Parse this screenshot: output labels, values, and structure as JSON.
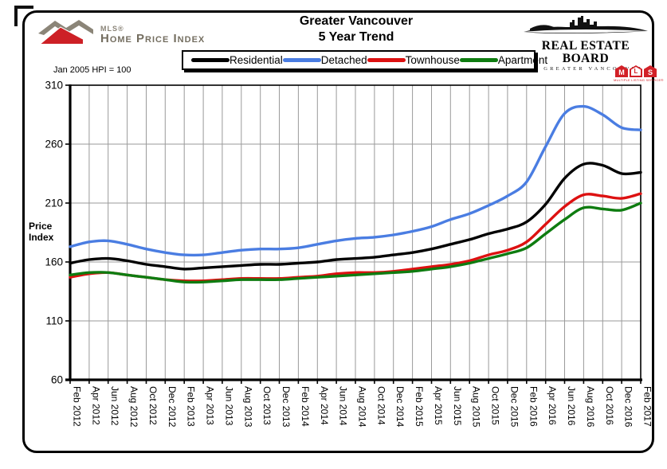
{
  "header": {
    "hpi_logo": {
      "brand_small": "MLS®",
      "brand_main": "Home Price Index"
    },
    "title_line1": "Greater Vancouver",
    "title_line2": "5 Year Trend",
    "board_logo": {
      "line1": "REAL ESTATE BOARD",
      "line2": "OF GREATER VANCOUVER"
    }
  },
  "legend": {
    "items": [
      {
        "label": "Residential",
        "color": "#000000"
      },
      {
        "label": "Detached",
        "color": "#4a7de2"
      },
      {
        "label": "Townhouse",
        "color": "#dd1111"
      },
      {
        "label": "Apartment",
        "color": "#0e7c10"
      }
    ]
  },
  "annotations": {
    "baseline_note": "Jan 2005 HPI = 100",
    "y_axis_label_line1": "Price",
    "y_axis_label_line2": "Index",
    "mls_badge": {
      "letters": [
        "M",
        "L",
        "S"
      ],
      "caption": "MULTIPLE LISTING SERVICE®"
    }
  },
  "chart_data": {
    "type": "line",
    "title": "Greater Vancouver 5 Year Trend",
    "ylabel": "Price Index",
    "ylim": [
      60,
      310
    ],
    "y_ticks": [
      60,
      110,
      160,
      210,
      260,
      310
    ],
    "grid": true,
    "legend_position": "top",
    "baseline": "Jan 2005 HPI = 100",
    "x_tick_labels": [
      "Feb 2012",
      "Apr 2012",
      "Jun 2012",
      "Aug 2012",
      "Oct 2012",
      "Dec 2012",
      "Feb 2013",
      "Apr 2013",
      "Jun 2013",
      "Aug 2013",
      "Oct 2013",
      "Dec 2013",
      "Feb 2014",
      "Apr 2014",
      "Jun 2014",
      "Aug 2014",
      "Oct 2014",
      "Dec 2014",
      "Feb 2015",
      "Apr 2015",
      "Jun 2015",
      "Aug 2015",
      "Oct 2015",
      "Dec 2015",
      "Feb 2016",
      "Apr 2016",
      "Jun 2016",
      "Aug 2016",
      "Oct 2016",
      "Dec 2016",
      "Feb 2017"
    ],
    "series": [
      {
        "name": "Residential",
        "color": "#000000",
        "values": [
          159,
          162,
          163,
          161,
          158,
          156,
          154,
          155,
          156,
          157,
          158,
          158,
          159,
          160,
          162,
          163,
          164,
          166,
          168,
          171,
          175,
          179,
          184,
          188,
          194,
          209,
          231,
          243,
          242,
          235,
          236
        ]
      },
      {
        "name": "Detached",
        "color": "#4a7de2",
        "values": [
          173,
          177,
          178,
          175,
          171,
          168,
          166,
          166,
          168,
          170,
          171,
          171,
          172,
          175,
          178,
          180,
          181,
          183,
          186,
          190,
          196,
          201,
          208,
          216,
          228,
          258,
          286,
          292,
          285,
          274,
          272
        ]
      },
      {
        "name": "Townhouse",
        "color": "#dd1111",
        "values": [
          147,
          150,
          151,
          149,
          147,
          145,
          144,
          144,
          145,
          146,
          146,
          146,
          147,
          148,
          150,
          151,
          151,
          152,
          154,
          156,
          158,
          161,
          166,
          170,
          177,
          192,
          207,
          217,
          216,
          214,
          218
        ]
      },
      {
        "name": "Apartment",
        "color": "#0e7c10",
        "values": [
          149,
          151,
          151,
          149,
          147,
          145,
          143,
          143,
          144,
          145,
          145,
          145,
          146,
          147,
          148,
          149,
          150,
          151,
          152,
          154,
          156,
          159,
          163,
          167,
          172,
          184,
          196,
          206,
          205,
          204,
          210
        ]
      }
    ]
  }
}
